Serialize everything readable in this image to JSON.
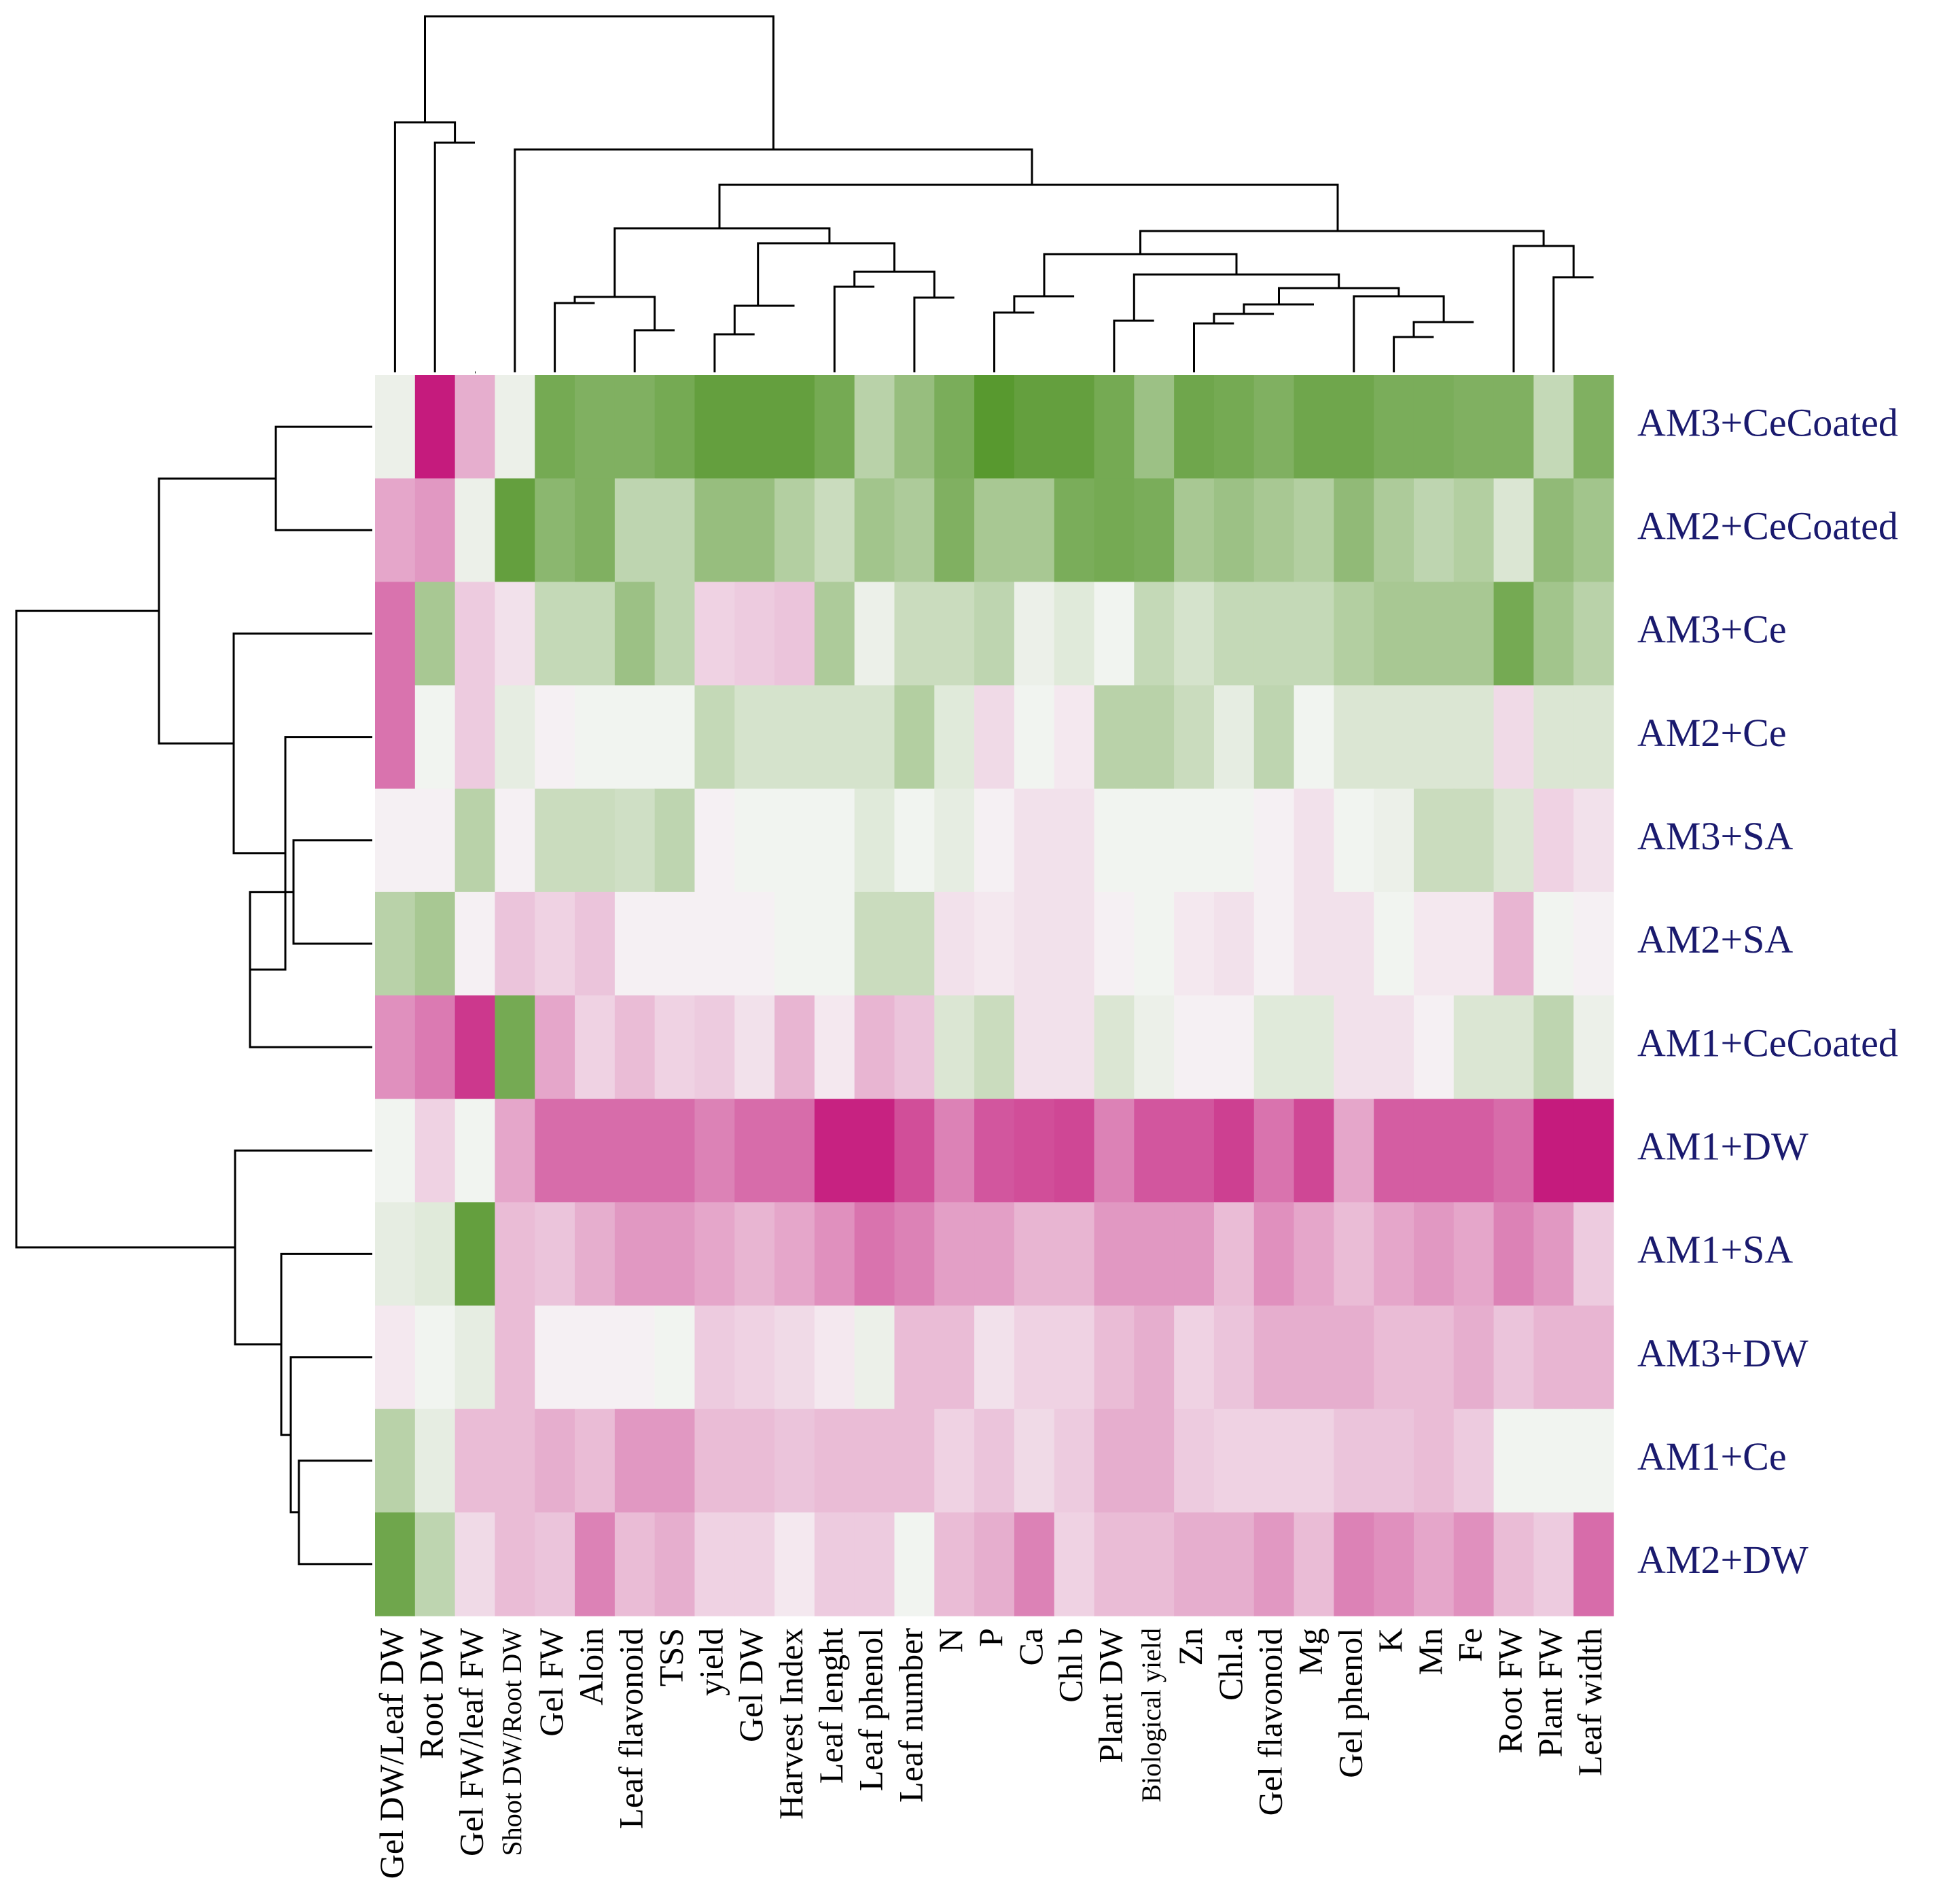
{
  "chart_data": {
    "type": "heatmap",
    "title": "",
    "xlabel": "",
    "ylabel": "",
    "columns": [
      "Gel DW/Leaf DW",
      "Root DW",
      "Gel FW/leaf FW",
      "Shoot DW/Root DW",
      "Gel FW",
      "Aloin",
      "Leaf flavonoid",
      "TSS",
      "yield",
      "Gel DW",
      "Harvest Index",
      "Leaf lenght",
      "Leaf phenol",
      "Leaf number",
      "N",
      "P",
      "Ca",
      "Chl b",
      "Plant DW",
      "Biological yield",
      "Zn",
      "Chl.a",
      "Gel flavonoid",
      "Mg",
      "Gel phenol",
      "K",
      "Mn",
      "Fe",
      "Root FW",
      "Plant FW",
      "Leaf width"
    ],
    "rows": [
      "AM3+CeCoated",
      "AM2+CeCoated",
      "AM3+Ce",
      "AM2+Ce",
      "AM3+SA",
      "AM2+SA",
      "AM1+CeCoated",
      "AM1+DW",
      "AM1+SA",
      "AM3+DW",
      "AM1+Ce",
      "AM2+DW"
    ],
    "color_scale": {
      "low": "#c51b7d",
      "mid": "#f7f7f7",
      "high": "#4d9221",
      "range": [
        -3,
        3
      ]
    },
    "values": [
      [
        0.2,
        -3.0,
        -1.0,
        0.2,
        2.3,
        2.1,
        2.1,
        2.3,
        2.6,
        2.6,
        2.6,
        2.3,
        1.1,
        1.7,
        2.2,
        2.8,
        2.6,
        2.6,
        2.3,
        1.6,
        2.4,
        2.3,
        2.1,
        2.4,
        2.4,
        2.2,
        2.2,
        2.1,
        2.1,
        0.9,
        2.1
      ],
      [
        -1.1,
        -1.3,
        0.2,
        2.6,
        1.9,
        2.1,
        1.0,
        1.0,
        1.7,
        1.7,
        1.2,
        0.8,
        1.5,
        1.3,
        2.1,
        1.4,
        1.4,
        2.2,
        2.3,
        2.2,
        1.4,
        1.6,
        1.4,
        1.2,
        1.8,
        1.3,
        1.0,
        1.2,
        0.5,
        1.8,
        1.5
      ],
      [
        -1.8,
        1.4,
        -0.6,
        -0.3,
        0.9,
        0.9,
        1.6,
        1.0,
        -0.5,
        -0.6,
        -0.7,
        1.3,
        0.2,
        0.8,
        0.8,
        1.0,
        0.2,
        0.4,
        0.1,
        0.9,
        0.6,
        0.9,
        0.9,
        0.9,
        1.2,
        1.4,
        1.4,
        1.4,
        2.3,
        1.5,
        1.1
      ],
      [
        -1.8,
        0.1,
        -0.6,
        0.3,
        -0.1,
        0.1,
        0.1,
        0.1,
        0.9,
        0.6,
        0.6,
        0.6,
        0.6,
        1.2,
        0.4,
        -0.4,
        0.1,
        -0.2,
        1.1,
        1.1,
        0.8,
        0.3,
        1.0,
        0.1,
        0.5,
        0.5,
        0.5,
        0.5,
        -0.4,
        0.5,
        0.5
      ],
      [
        -0.1,
        -0.1,
        1.1,
        -0.1,
        0.8,
        0.8,
        0.7,
        1.0,
        -0.1,
        0.1,
        0.1,
        0.1,
        0.4,
        0.1,
        0.3,
        -0.1,
        -0.3,
        -0.3,
        0.1,
        0.1,
        0.1,
        0.1,
        -0.1,
        -0.3,
        0.1,
        0.2,
        0.8,
        0.8,
        0.5,
        -0.5,
        -0.3
      ],
      [
        1.1,
        1.4,
        -0.1,
        -0.7,
        -0.5,
        -0.7,
        -0.1,
        -0.1,
        -0.1,
        -0.1,
        0.1,
        0.1,
        0.8,
        0.8,
        -0.3,
        -0.2,
        -0.3,
        -0.3,
        -0.1,
        0.1,
        -0.2,
        -0.3,
        -0.1,
        -0.3,
        -0.3,
        0.1,
        -0.2,
        -0.2,
        -0.9,
        0.1,
        -0.1
      ],
      [
        -1.4,
        -1.7,
        -2.6,
        2.3,
        -1.1,
        -0.5,
        -0.8,
        -0.5,
        -0.6,
        -0.3,
        -0.9,
        -0.2,
        -0.9,
        -0.7,
        0.5,
        0.8,
        -0.3,
        -0.3,
        0.5,
        0.2,
        -0.1,
        -0.1,
        0.4,
        0.4,
        -0.3,
        -0.3,
        -0.1,
        0.5,
        0.5,
        1.0,
        0.2
      ],
      [
        0.1,
        -0.5,
        0.1,
        -1.1,
        -1.9,
        -1.9,
        -1.9,
        -1.9,
        -1.6,
        -1.9,
        -1.9,
        -2.9,
        -2.9,
        -2.3,
        -1.6,
        -2.2,
        -2.3,
        -2.4,
        -1.6,
        -2.2,
        -2.2,
        -2.5,
        -1.8,
        -2.4,
        -1.1,
        -2.1,
        -2.1,
        -2.1,
        -1.9,
        -3.0,
        -3.0
      ],
      [
        0.3,
        0.4,
        2.6,
        -0.8,
        -0.7,
        -1.0,
        -1.3,
        -1.3,
        -1.1,
        -0.9,
        -1.1,
        -1.4,
        -1.8,
        -1.6,
        -1.2,
        -1.2,
        -0.9,
        -0.9,
        -1.3,
        -1.3,
        -1.3,
        -0.8,
        -1.4,
        -1.1,
        -0.8,
        -1.1,
        -1.3,
        -1.1,
        -1.6,
        -1.3,
        -0.6
      ],
      [
        -0.2,
        0.1,
        0.3,
        -0.8,
        -0.1,
        -0.1,
        -0.1,
        0.1,
        -0.6,
        -0.5,
        -0.4,
        -0.2,
        0.2,
        -0.8,
        -0.8,
        -0.3,
        -0.5,
        -0.5,
        -0.8,
        -1.0,
        -0.5,
        -0.7,
        -1.0,
        -1.0,
        -1.0,
        -0.8,
        -0.8,
        -1.0,
        -0.7,
        -0.9,
        -0.9
      ],
      [
        1.1,
        0.3,
        -0.8,
        -0.8,
        -1.0,
        -0.8,
        -1.3,
        -1.3,
        -0.8,
        -0.8,
        -0.7,
        -0.8,
        -0.8,
        -0.8,
        -0.5,
        -0.7,
        -0.4,
        -0.6,
        -1.0,
        -1.0,
        -0.6,
        -0.5,
        -0.5,
        -0.5,
        -0.7,
        -0.7,
        -0.8,
        -0.6,
        0.1,
        0.1,
        0.1
      ],
      [
        2.4,
        1.0,
        -0.4,
        -0.8,
        -0.7,
        -1.6,
        -0.8,
        -1.0,
        -0.5,
        -0.5,
        -0.2,
        -0.6,
        -0.6,
        0.1,
        -0.8,
        -1.0,
        -1.6,
        -0.5,
        -0.8,
        -0.8,
        -1.0,
        -1.0,
        -1.3,
        -0.8,
        -1.6,
        -1.4,
        -1.1,
        -1.4,
        -0.8,
        -0.6,
        -1.9
      ]
    ],
    "column_dendrogram": true,
    "row_dendrogram": true,
    "legend": "none"
  }
}
